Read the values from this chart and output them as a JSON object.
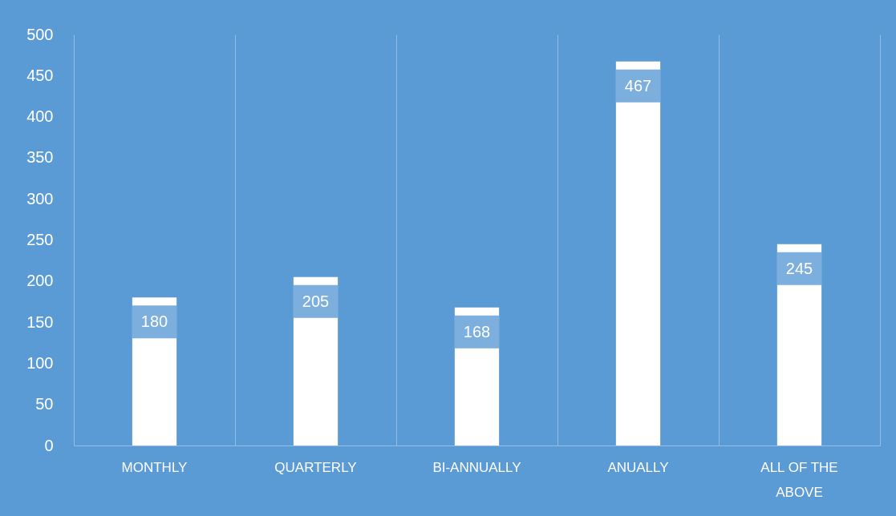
{
  "chart_data": {
    "type": "bar",
    "categories": [
      "MONTHLY",
      "QUARTERLY",
      "BI-ANNUALLY",
      "ANUALLY",
      "ALL OF THE ABOVE"
    ],
    "values": [
      180,
      205,
      168,
      467,
      245
    ],
    "color": "#ffffff",
    "ylim": [
      0,
      500
    ],
    "yticks": [
      0,
      50,
      100,
      150,
      200,
      250,
      300,
      350,
      400,
      450,
      500
    ],
    "grid": "x",
    "data_labels": true
  }
}
